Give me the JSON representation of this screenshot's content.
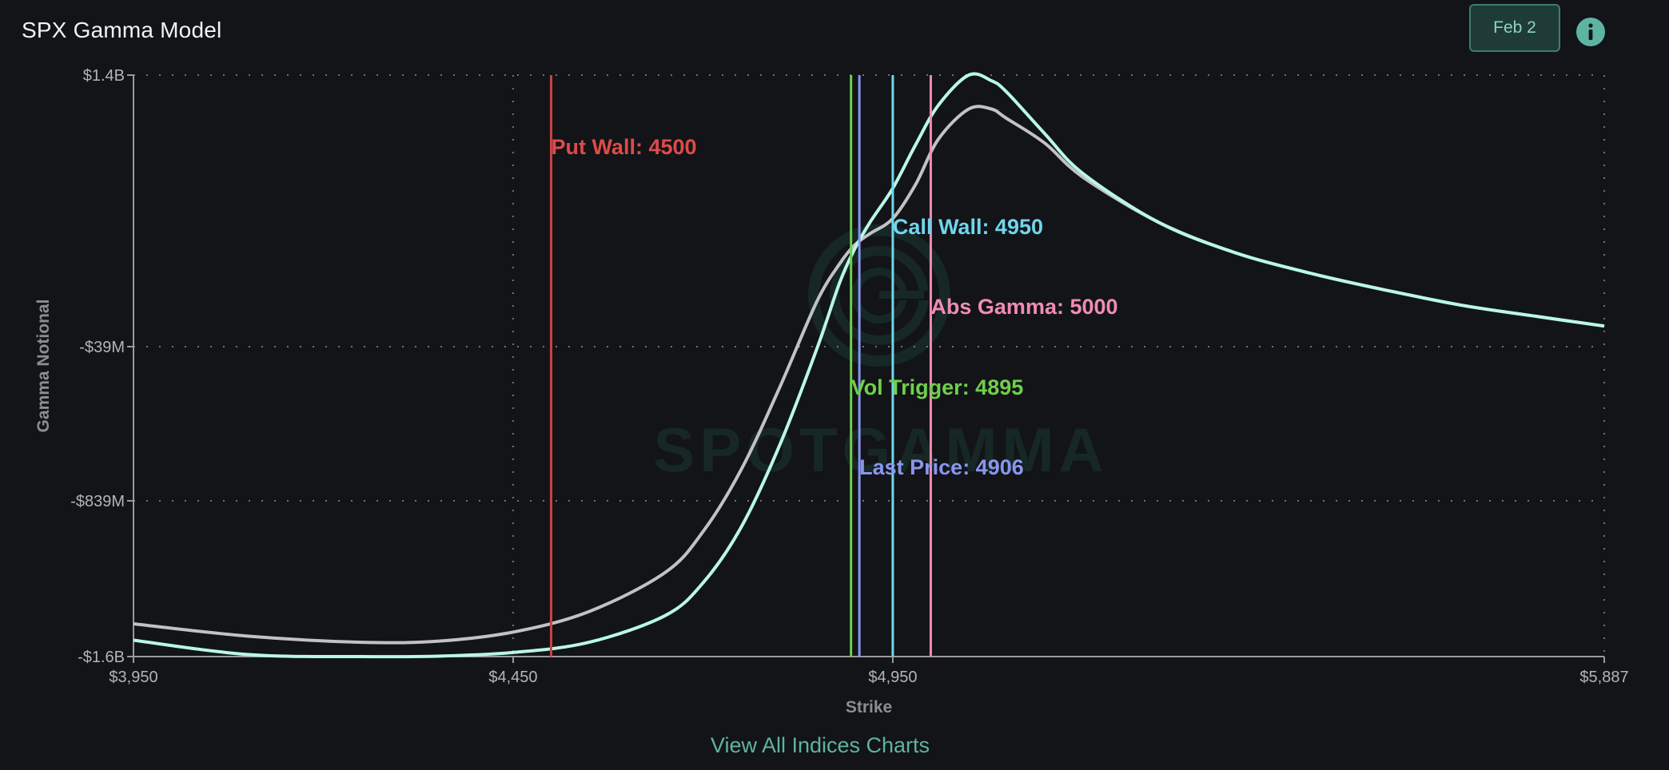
{
  "header": {
    "title": "SPX Gamma Model",
    "date_button": "Feb 2",
    "info_icon": "info-icon"
  },
  "footer": {
    "link_label": "View All Indices Charts"
  },
  "watermark": {
    "logo_icon": "spotgamma-logo-icon",
    "text": "SPOTGAMMA"
  },
  "colors": {
    "background": "#121417",
    "axis": "#9a9a9a",
    "grid": "#8a8a8a",
    "accent": "#5fb3a3",
    "series_primary": "#b9f7e6",
    "series_secondary": "#c2c2c2"
  },
  "chart_data": {
    "type": "line",
    "title": "",
    "xlabel": "Strike",
    "ylabel": "Gamma Notional",
    "xlim": [
      3950,
      5887
    ],
    "ylim": [
      -1600000000,
      1400000000
    ],
    "x_ticks": [
      {
        "value": 3950,
        "label": "$3,950"
      },
      {
        "value": 4450,
        "label": "$4,450"
      },
      {
        "value": 4950,
        "label": "$4,950"
      },
      {
        "value": 5887,
        "label": "$5,887"
      }
    ],
    "y_ticks": [
      {
        "value": 1400000000,
        "label": "$1.4B"
      },
      {
        "value": -39000000,
        "label": "-$39M"
      },
      {
        "value": -839000000,
        "label": "-$839M"
      },
      {
        "value": -1600000000,
        "label": "-$1.6B"
      }
    ],
    "grid": true,
    "legend": "none",
    "series": [
      {
        "color": "#b9f7e6",
        "x": [
          3950,
          4100,
          4250,
          4350,
          4450,
          4550,
          4650,
          4700,
          4750,
          4800,
          4850,
          4880,
          4900,
          4920,
          4950,
          4980,
          5010,
          5050,
          5080,
          5100,
          5150,
          5200,
          5300,
          5400,
          5500,
          5600,
          5700,
          5800,
          5887
        ],
        "y": [
          -1520000000,
          -1590000000,
          -1600000000,
          -1598000000,
          -1580000000,
          -1530000000,
          -1400000000,
          -1240000000,
          -970000000,
          -560000000,
          -50000000,
          300000000,
          480000000,
          620000000,
          800000000,
          1030000000,
          1240000000,
          1400000000,
          1370000000,
          1310000000,
          1090000000,
          880000000,
          620000000,
          460000000,
          350000000,
          260000000,
          180000000,
          120000000,
          70000000
        ]
      },
      {
        "color": "#c2c2c2",
        "x": [
          3950,
          4100,
          4250,
          4350,
          4450,
          4550,
          4650,
          4700,
          4750,
          4800,
          4850,
          4880,
          4900,
          4920,
          4950,
          4980,
          5010,
          5050,
          5080,
          5100,
          5150,
          5200,
          5300,
          5400,
          5500,
          5600,
          5700,
          5800,
          5887
        ],
        "y": [
          -1440000000,
          -1500000000,
          -1530000000,
          -1525000000,
          -1480000000,
          -1380000000,
          -1190000000,
          -990000000,
          -680000000,
          -260000000,
          200000000,
          400000000,
          500000000,
          560000000,
          640000000,
          820000000,
          1060000000,
          1220000000,
          1220000000,
          1170000000,
          1040000000,
          860000000,
          620000000,
          460000000,
          350000000,
          260000000,
          180000000,
          120000000,
          70000000
        ]
      }
    ],
    "levels": [
      {
        "label": "Put Wall: 4500",
        "x": 4500,
        "color": "#e04a4a",
        "line_color": "#c84444"
      },
      {
        "label": "Call Wall: 4950",
        "x": 4950,
        "color": "#6fd6ee",
        "line_color": "#6fd6ee"
      },
      {
        "label": "Abs Gamma: 5000",
        "x": 5000,
        "color": "#f08cb4",
        "line_color": "#f08cb4"
      },
      {
        "label": "Vol Trigger: 4895",
        "x": 4895,
        "color": "#6fd04a",
        "line_color": "#6fd04a"
      },
      {
        "label": "Last Price: 4906",
        "x": 4906,
        "color": "#8a95ee",
        "line_color": "#8a95ee"
      }
    ]
  }
}
